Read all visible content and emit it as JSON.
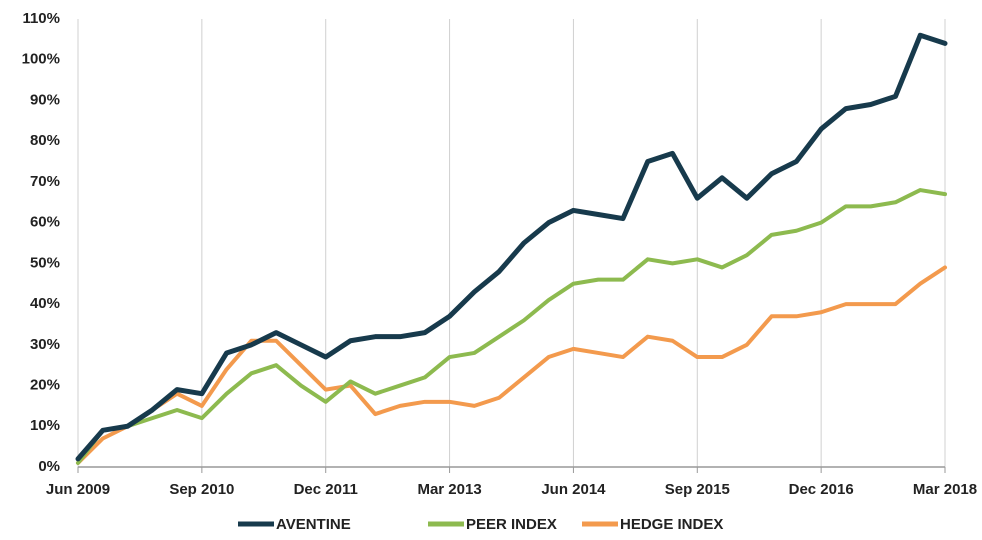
{
  "chart_data": {
    "type": "line",
    "categories": [
      "Jun 2009",
      null,
      null,
      null,
      null,
      "Sep 2010",
      null,
      null,
      null,
      null,
      "Dec 2011",
      null,
      null,
      null,
      null,
      "Mar 2013",
      null,
      null,
      null,
      null,
      "Jun 2014",
      null,
      null,
      null,
      null,
      "Sep 2015",
      null,
      null,
      null,
      null,
      "Dec 2016",
      null,
      null,
      null,
      null,
      "Mar 2018"
    ],
    "series": [
      {
        "name": "AVENTINE",
        "color": "#173a4c",
        "values": [
          2,
          9,
          10,
          14,
          19,
          18,
          28,
          30,
          33,
          30,
          27,
          31,
          32,
          32,
          33,
          37,
          43,
          48,
          55,
          60,
          63,
          62,
          61,
          75,
          77,
          66,
          71,
          66,
          72,
          75,
          83,
          88,
          89,
          91,
          106,
          104
        ]
      },
      {
        "name": "PEER INDEX",
        "color": "#8dba4f",
        "values": [
          1,
          9,
          10,
          12,
          14,
          12,
          18,
          23,
          25,
          20,
          16,
          21,
          18,
          20,
          22,
          27,
          28,
          32,
          36,
          41,
          45,
          46,
          46,
          51,
          50,
          51,
          49,
          52,
          57,
          58,
          60,
          64,
          64,
          65,
          68,
          67
        ]
      },
      {
        "name": "HEDGE INDEX",
        "color": "#f39a4d",
        "values": [
          1,
          7,
          10,
          14,
          18,
          15,
          24,
          31,
          31,
          25,
          19,
          20,
          13,
          15,
          16,
          16,
          15,
          17,
          22,
          27,
          29,
          28,
          27,
          32,
          31,
          27,
          27,
          30,
          37,
          37,
          38,
          40,
          40,
          40,
          45,
          49
        ]
      }
    ],
    "ylim": [
      0,
      110
    ],
    "yticks": [
      {
        "value": 0,
        "label": "0%"
      },
      {
        "value": 10,
        "label": "10%"
      },
      {
        "value": 20,
        "label": "20%"
      },
      {
        "value": 30,
        "label": "30%"
      },
      {
        "value": 40,
        "label": "40%"
      },
      {
        "value": 50,
        "label": "50%"
      },
      {
        "value": 60,
        "label": "60%"
      },
      {
        "value": 70,
        "label": "70%"
      },
      {
        "value": 80,
        "label": "80%"
      },
      {
        "value": 90,
        "label": "90%"
      },
      {
        "value": 100,
        "label": "100%"
      },
      {
        "value": 110,
        "label": "110%"
      }
    ],
    "grid": true,
    "legend": "bottom"
  }
}
